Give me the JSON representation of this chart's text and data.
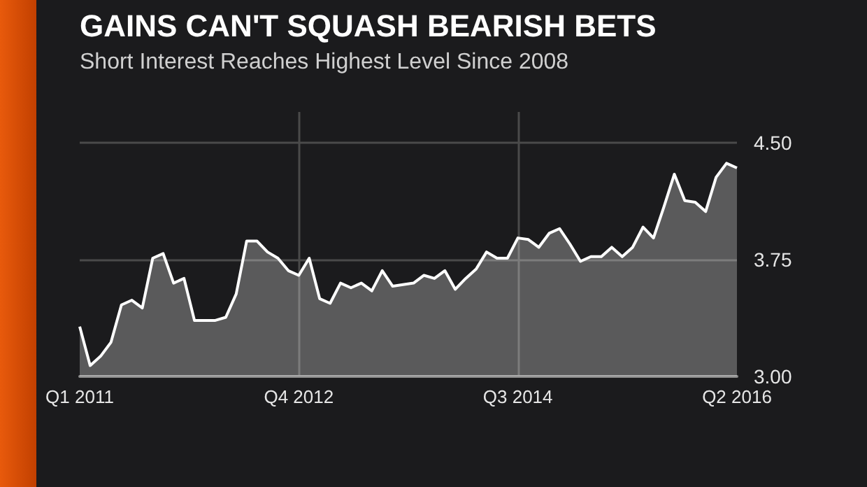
{
  "chart_data": {
    "type": "area",
    "title": "GAINS CAN'T SQUASH BEARISH BETS",
    "subtitle": "Short Interest Reaches Highest Level Since 2008",
    "categories": [
      "Q1 2011",
      null,
      null,
      null,
      null,
      null,
      null,
      null,
      null,
      null,
      null,
      null,
      null,
      null,
      null,
      null,
      null,
      null,
      null,
      null,
      null,
      "Q4 2012",
      null,
      null,
      null,
      null,
      null,
      null,
      null,
      null,
      null,
      null,
      null,
      null,
      null,
      null,
      null,
      null,
      null,
      null,
      null,
      null,
      "Q3 2014",
      null,
      null,
      null,
      null,
      null,
      null,
      null,
      null,
      null,
      null,
      null,
      null,
      null,
      null,
      null,
      null,
      null,
      null,
      null,
      null,
      "Q2 2016"
    ],
    "series": [
      {
        "color": "#ffffff",
        "values": [
          3.32,
          3.07,
          3.13,
          3.22,
          3.46,
          3.49,
          3.44,
          3.76,
          3.79,
          3.6,
          3.63,
          3.36,
          3.36,
          3.36,
          3.38,
          3.53,
          3.87,
          3.87,
          3.8,
          3.76,
          3.68,
          3.65,
          3.76,
          3.5,
          3.47,
          3.6,
          3.57,
          3.6,
          3.55,
          3.68,
          3.58,
          3.59,
          3.6,
          3.65,
          3.63,
          3.68,
          3.56,
          3.63,
          3.69,
          3.8,
          3.76,
          3.76,
          3.89,
          3.88,
          3.83,
          3.92,
          3.95,
          3.85,
          3.74,
          3.77,
          3.77,
          3.83,
          3.77,
          3.83,
          3.96,
          3.89,
          4.09,
          4.3,
          4.13,
          4.12,
          4.06,
          4.28,
          4.37,
          4.34
        ]
      }
    ],
    "ylim": [
      3.0,
      4.7
    ],
    "yticks": [
      {
        "value": 3.0,
        "label": "3.00"
      },
      {
        "value": 3.75,
        "label": "3.75"
      },
      {
        "value": 4.5,
        "label": "4.50"
      }
    ],
    "grid": true
  }
}
